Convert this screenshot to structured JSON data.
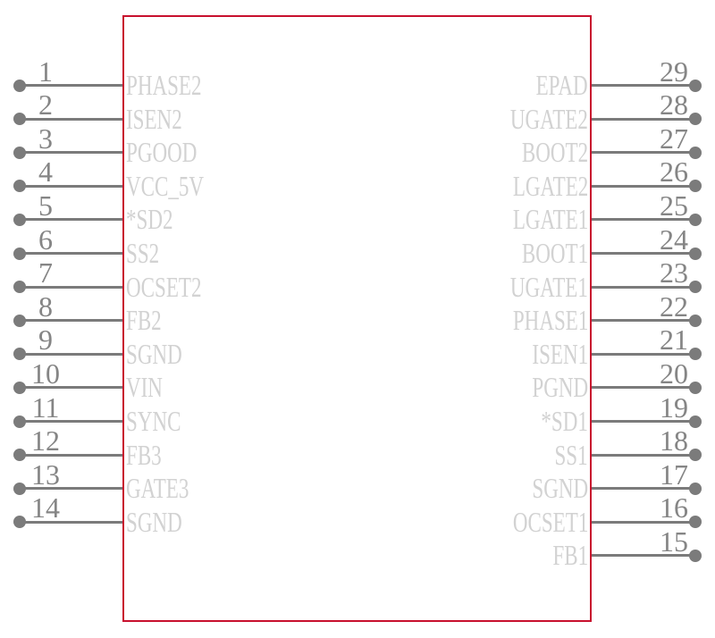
{
  "symbol": {
    "type": "schematic-component-symbol",
    "colors": {
      "outline": "#c8102e",
      "pin": "#7b7b7b",
      "pin_number": "#858585",
      "pin_label": "#d2d2d2",
      "background": "#ffffff"
    },
    "left_pins": [
      {
        "number": "1",
        "label": "PHASE2"
      },
      {
        "number": "2",
        "label": "ISEN2"
      },
      {
        "number": "3",
        "label": "PGOOD"
      },
      {
        "number": "4",
        "label": "VCC_5V"
      },
      {
        "number": "5",
        "label": "*SD2"
      },
      {
        "number": "6",
        "label": "SS2"
      },
      {
        "number": "7",
        "label": "OCSET2"
      },
      {
        "number": "8",
        "label": "FB2"
      },
      {
        "number": "9",
        "label": "SGND"
      },
      {
        "number": "10",
        "label": "VIN"
      },
      {
        "number": "11",
        "label": "SYNC"
      },
      {
        "number": "12",
        "label": "FB3"
      },
      {
        "number": "13",
        "label": "GATE3"
      },
      {
        "number": "14",
        "label": "SGND"
      }
    ],
    "right_pins": [
      {
        "number": "29",
        "label": "EPAD"
      },
      {
        "number": "28",
        "label": "UGATE2"
      },
      {
        "number": "27",
        "label": "BOOT2"
      },
      {
        "number": "26",
        "label": "LGATE2"
      },
      {
        "number": "25",
        "label": "LGATE1"
      },
      {
        "number": "24",
        "label": "BOOT1"
      },
      {
        "number": "23",
        "label": "UGATE1"
      },
      {
        "number": "22",
        "label": "PHASE1"
      },
      {
        "number": "21",
        "label": "ISEN1"
      },
      {
        "number": "20",
        "label": "PGND"
      },
      {
        "number": "19",
        "label": "*SD1"
      },
      {
        "number": "18",
        "label": "SS1"
      },
      {
        "number": "17",
        "label": "SGND"
      },
      {
        "number": "16",
        "label": "OCSET1"
      },
      {
        "number": "15",
        "label": "FB1"
      }
    ]
  }
}
